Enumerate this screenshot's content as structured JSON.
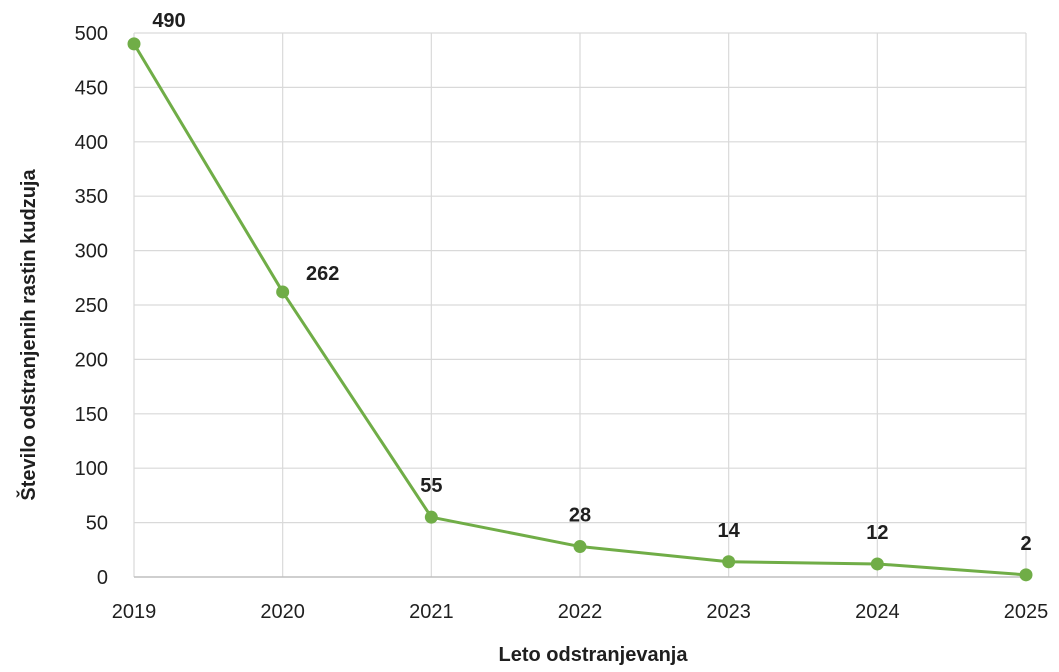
{
  "chart_data": {
    "type": "line",
    "title": "",
    "xlabel": "Leto odstranjevanja",
    "ylabel": "Število odstranjenih rastin kudzuja",
    "categories": [
      "2019",
      "2020",
      "2021",
      "2022",
      "2023",
      "2024",
      "2025"
    ],
    "series": [
      {
        "values": [
          490,
          262,
          55,
          28,
          14,
          12,
          2
        ]
      }
    ],
    "data_labels": [
      "490",
      "262",
      "55",
      "28",
      "14",
      "12",
      "2"
    ],
    "y_ticks": [
      "0",
      "50",
      "100",
      "150",
      "200",
      "250",
      "300",
      "350",
      "400",
      "450",
      "500"
    ],
    "ylim": [
      0,
      500
    ],
    "grid": true,
    "legend": "none",
    "colors": {
      "line": "#70ad47",
      "marker": "#70ad47",
      "grid": "#d9d9d9",
      "axis": "#bfbfbf",
      "text": "#1f1f1f"
    }
  }
}
